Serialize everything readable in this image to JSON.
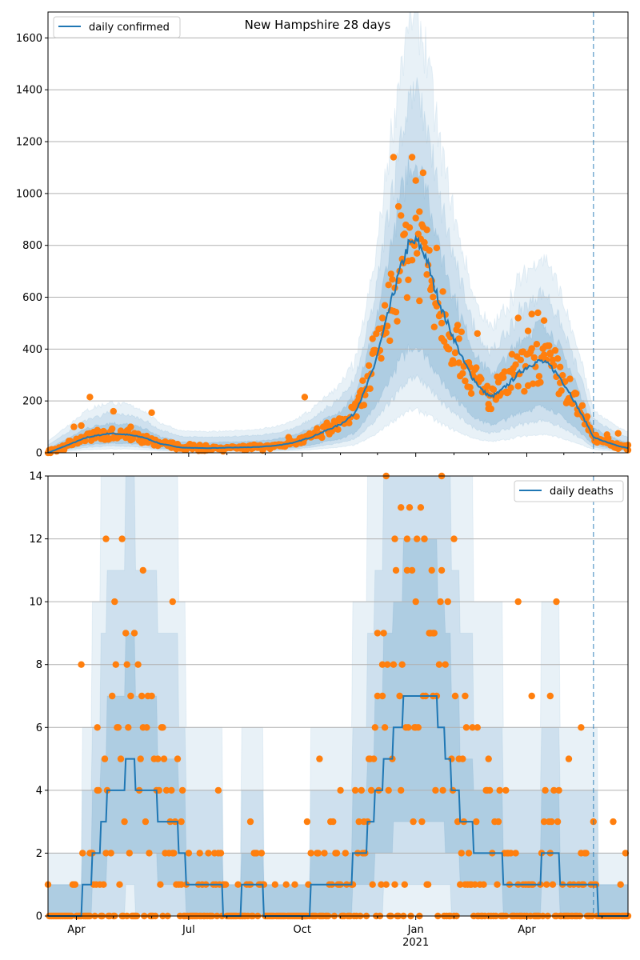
{
  "chart_data": [
    {
      "type": "line",
      "title": "New Hampshire 28 days",
      "legend": {
        "label": "daily confirmed",
        "placement": "top-left"
      },
      "ylim": [
        0,
        1700
      ],
      "yticks": [
        0,
        200,
        400,
        600,
        800,
        1000,
        1200,
        1400,
        1600
      ],
      "grid": "horizontal",
      "line_color": "#1f77b4",
      "marker_color": "#ff7f0e",
      "band_color": "#1f77b4",
      "forecast_start": "2021-05-25",
      "mean_keypoints": [
        [
          "2020-03-09",
          0
        ],
        [
          "2020-03-25",
          30
        ],
        [
          "2020-04-10",
          60
        ],
        [
          "2020-04-28",
          75
        ],
        [
          "2020-05-12",
          70
        ],
        [
          "2020-05-25",
          60
        ],
        [
          "2020-06-08",
          35
        ],
        [
          "2020-06-25",
          20
        ],
        [
          "2020-07-15",
          18
        ],
        [
          "2020-08-05",
          20
        ],
        [
          "2020-08-25",
          22
        ],
        [
          "2020-09-10",
          28
        ],
        [
          "2020-09-25",
          40
        ],
        [
          "2020-10-08",
          60
        ],
        [
          "2020-10-20",
          85
        ],
        [
          "2020-11-01",
          110
        ],
        [
          "2020-11-12",
          150
        ],
        [
          "2020-11-20",
          230
        ],
        [
          "2020-11-28",
          330
        ],
        [
          "2020-12-05",
          450
        ],
        [
          "2020-12-12",
          580
        ],
        [
          "2020-12-19",
          700
        ],
        [
          "2020-12-26",
          800
        ],
        [
          "2021-01-02",
          815
        ],
        [
          "2021-01-09",
          760
        ],
        [
          "2021-01-16",
          640
        ],
        [
          "2021-01-24",
          530
        ],
        [
          "2021-02-01",
          440
        ],
        [
          "2021-02-08",
          360
        ],
        [
          "2021-02-16",
          290
        ],
        [
          "2021-02-24",
          240
        ],
        [
          "2021-03-03",
          215
        ],
        [
          "2021-03-10",
          235
        ],
        [
          "2021-03-18",
          270
        ],
        [
          "2021-03-26",
          310
        ],
        [
          "2021-04-04",
          340
        ],
        [
          "2021-04-12",
          355
        ],
        [
          "2021-04-20",
          335
        ],
        [
          "2021-04-28",
          290
        ],
        [
          "2021-05-06",
          230
        ],
        [
          "2021-05-14",
          160
        ],
        [
          "2021-05-22",
          90
        ],
        [
          "2021-05-25",
          60
        ],
        [
          "2021-06-05",
          40
        ],
        [
          "2021-06-15",
          25
        ],
        [
          "2021-06-22",
          18
        ]
      ],
      "observed_sample": [
        [
          "2020-03-30",
          100
        ],
        [
          "2020-04-05",
          105
        ],
        [
          "2020-04-12",
          215
        ],
        [
          "2020-04-20",
          80
        ],
        [
          "2020-05-01",
          160
        ],
        [
          "2020-05-15",
          100
        ],
        [
          "2020-06-01",
          155
        ],
        [
          "2020-07-10",
          30
        ],
        [
          "2020-08-15",
          25
        ],
        [
          "2020-09-20",
          60
        ],
        [
          "2020-10-03",
          215
        ],
        [
          "2020-10-20",
          100
        ],
        [
          "2020-11-05",
          130
        ],
        [
          "2020-11-18",
          240
        ],
        [
          "2020-11-27",
          440
        ],
        [
          "2020-12-05",
          520
        ],
        [
          "2020-12-12",
          690
        ],
        [
          "2020-12-14",
          1140
        ],
        [
          "2020-12-18",
          950
        ],
        [
          "2020-12-22",
          840
        ],
        [
          "2020-12-26",
          740
        ],
        [
          "2020-12-29",
          1140
        ],
        [
          "2021-01-01",
          1050
        ],
        [
          "2021-01-04",
          930
        ],
        [
          "2021-01-07",
          1080
        ],
        [
          "2021-01-10",
          860
        ],
        [
          "2021-01-14",
          640
        ],
        [
          "2021-01-18",
          790
        ],
        [
          "2021-01-22",
          500
        ],
        [
          "2021-01-28",
          400
        ],
        [
          "2021-02-05",
          440
        ],
        [
          "2021-02-14",
          330
        ],
        [
          "2021-02-20",
          460
        ],
        [
          "2021-03-01",
          170
        ],
        [
          "2021-03-12",
          300
        ],
        [
          "2021-03-20",
          380
        ],
        [
          "2021-03-25",
          520
        ],
        [
          "2021-04-02",
          470
        ],
        [
          "2021-04-05",
          535
        ],
        [
          "2021-04-10",
          540
        ],
        [
          "2021-04-15",
          510
        ],
        [
          "2021-04-20",
          380
        ],
        [
          "2021-04-28",
          270
        ],
        [
          "2021-05-05",
          210
        ],
        [
          "2021-05-12",
          150
        ],
        [
          "2021-05-20",
          140
        ],
        [
          "2021-05-28",
          40
        ],
        [
          "2021-06-05",
          70
        ],
        [
          "2021-06-14",
          75
        ],
        [
          "2021-06-22",
          30
        ]
      ]
    },
    {
      "type": "line",
      "legend": {
        "label": "daily deaths",
        "placement": "top-right"
      },
      "ylim": [
        0,
        14
      ],
      "yticks": [
        0,
        2,
        4,
        6,
        8,
        10,
        12,
        14
      ],
      "grid": "horizontal",
      "line_color": "#1f77b4",
      "marker_color": "#ff7f0e",
      "band_color": "#1f77b4",
      "forecast_start": "2021-05-25",
      "mean_keypoints": [
        [
          "2020-03-09",
          0
        ],
        [
          "2020-04-01",
          0
        ],
        [
          "2020-04-10",
          1
        ],
        [
          "2020-04-18",
          2
        ],
        [
          "2020-04-28",
          4
        ],
        [
          "2020-05-08",
          4
        ],
        [
          "2020-05-14",
          5
        ],
        [
          "2020-05-22",
          4
        ],
        [
          "2020-06-01",
          4
        ],
        [
          "2020-06-10",
          3
        ],
        [
          "2020-06-20",
          3
        ],
        [
          "2020-07-01",
          1
        ],
        [
          "2020-07-20",
          1
        ],
        [
          "2020-08-05",
          0
        ],
        [
          "2020-08-20",
          1
        ],
        [
          "2020-09-10",
          0
        ],
        [
          "2020-10-05",
          0
        ],
        [
          "2020-10-10",
          1
        ],
        [
          "2020-11-01",
          1
        ],
        [
          "2020-11-20",
          2
        ],
        [
          "2020-12-01",
          4
        ],
        [
          "2020-12-10",
          5
        ],
        [
          "2020-12-18",
          6
        ],
        [
          "2020-12-25",
          7
        ],
        [
          "2021-01-05",
          7
        ],
        [
          "2021-01-15",
          7
        ],
        [
          "2021-01-22",
          6
        ],
        [
          "2021-02-01",
          4
        ],
        [
          "2021-02-10",
          3
        ],
        [
          "2021-02-22",
          2
        ],
        [
          "2021-03-05",
          2
        ],
        [
          "2021-03-20",
          1
        ],
        [
          "2021-04-05",
          1
        ],
        [
          "2021-04-20",
          2
        ],
        [
          "2021-05-05",
          1
        ],
        [
          "2021-05-20",
          1
        ],
        [
          "2021-05-25",
          1
        ],
        [
          "2021-06-01",
          0
        ],
        [
          "2021-06-22",
          0
        ]
      ],
      "observed_sample": [
        [
          "2020-04-05",
          8
        ],
        [
          "2020-04-12",
          2
        ],
        [
          "2020-04-18",
          6
        ],
        [
          "2020-04-25",
          12
        ],
        [
          "2020-05-02",
          10
        ],
        [
          "2020-05-08",
          12
        ],
        [
          "2020-05-12",
          8
        ],
        [
          "2020-05-18",
          9
        ],
        [
          "2020-05-25",
          11
        ],
        [
          "2020-06-01",
          7
        ],
        [
          "2020-06-10",
          6
        ],
        [
          "2020-06-18",
          10
        ],
        [
          "2020-06-25",
          3
        ],
        [
          "2020-07-10",
          2
        ],
        [
          "2020-07-25",
          4
        ],
        [
          "2020-08-20",
          3
        ],
        [
          "2020-09-25",
          1
        ],
        [
          "2020-10-05",
          3
        ],
        [
          "2020-10-15",
          5
        ],
        [
          "2020-11-01",
          4
        ],
        [
          "2020-11-20",
          3
        ],
        [
          "2020-12-01",
          9
        ],
        [
          "2020-12-05",
          8
        ],
        [
          "2020-12-08",
          14
        ],
        [
          "2020-12-15",
          12
        ],
        [
          "2020-12-20",
          13
        ],
        [
          "2020-12-25",
          11
        ],
        [
          "2021-01-01",
          10
        ],
        [
          "2021-01-08",
          12
        ],
        [
          "2021-01-15",
          9
        ],
        [
          "2021-01-22",
          14
        ],
        [
          "2021-02-01",
          12
        ],
        [
          "2021-02-10",
          7
        ],
        [
          "2021-02-20",
          6
        ],
        [
          "2021-03-01",
          5
        ],
        [
          "2021-03-15",
          4
        ],
        [
          "2021-03-25",
          10
        ],
        [
          "2021-04-05",
          7
        ],
        [
          "2021-04-20",
          7
        ],
        [
          "2021-04-25",
          10
        ],
        [
          "2021-05-05",
          5
        ],
        [
          "2021-05-15",
          6
        ],
        [
          "2021-05-25",
          3
        ],
        [
          "2021-06-10",
          3
        ],
        [
          "2021-06-20",
          2
        ]
      ]
    }
  ],
  "x_axis": {
    "ticks": [
      {
        "date": "2020-04-01",
        "label": "Apr"
      },
      {
        "date": "2020-07-01",
        "label": "Jul"
      },
      {
        "date": "2020-10-01",
        "label": "Oct"
      },
      {
        "date": "2021-01-01",
        "label": "Jan",
        "sublabel": "2021"
      },
      {
        "date": "2021-04-01",
        "label": "Apr"
      }
    ],
    "xlim": [
      "2020-03-09",
      "2021-06-22"
    ]
  }
}
